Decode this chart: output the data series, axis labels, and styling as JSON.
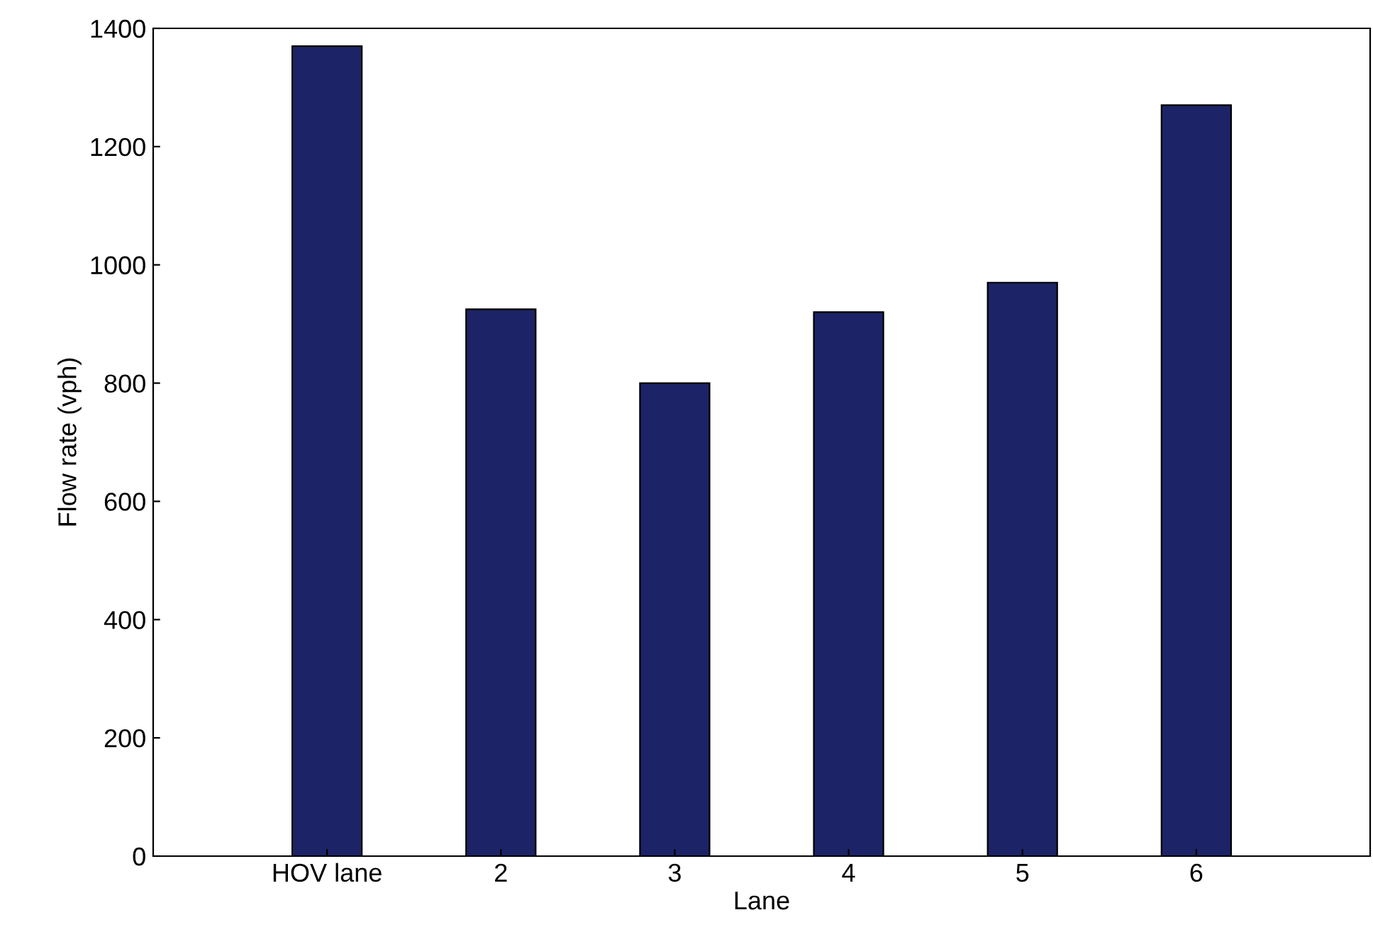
{
  "chart_data": {
    "type": "bar",
    "xlabel": "Lane",
    "ylabel": "Flow rate (vph)",
    "categories": [
      "HOV lane",
      "2",
      "3",
      "4",
      "5",
      "6"
    ],
    "values": [
      1370,
      925,
      800,
      920,
      970,
      1270
    ],
    "color": "#1c2366",
    "ylim": [
      0,
      1400
    ],
    "yticks": [
      0,
      200,
      400,
      600,
      800,
      1000,
      1200,
      1400
    ],
    "grid": false
  }
}
